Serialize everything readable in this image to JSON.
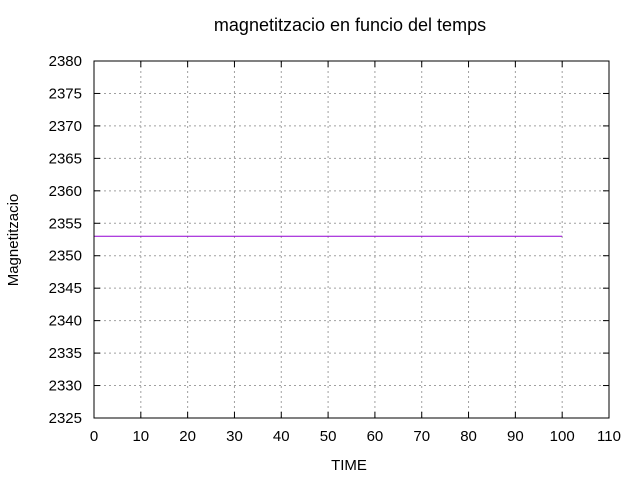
{
  "chart_data": {
    "type": "line",
    "title": "magnetitzacio en funcio del temps",
    "xlabel": "TIME",
    "ylabel": "Magnetitzacio",
    "xlim": [
      0,
      110
    ],
    "ylim": [
      2325,
      2380
    ],
    "x_ticks": [
      0,
      10,
      20,
      30,
      40,
      50,
      60,
      70,
      80,
      90,
      100,
      110
    ],
    "y_ticks": [
      2325,
      2330,
      2335,
      2340,
      2345,
      2350,
      2355,
      2360,
      2365,
      2370,
      2375,
      2380
    ],
    "grid": true,
    "series": [
      {
        "color": "#9400d3",
        "x": [
          0,
          100
        ],
        "y": [
          2353,
          2353
        ]
      }
    ]
  }
}
